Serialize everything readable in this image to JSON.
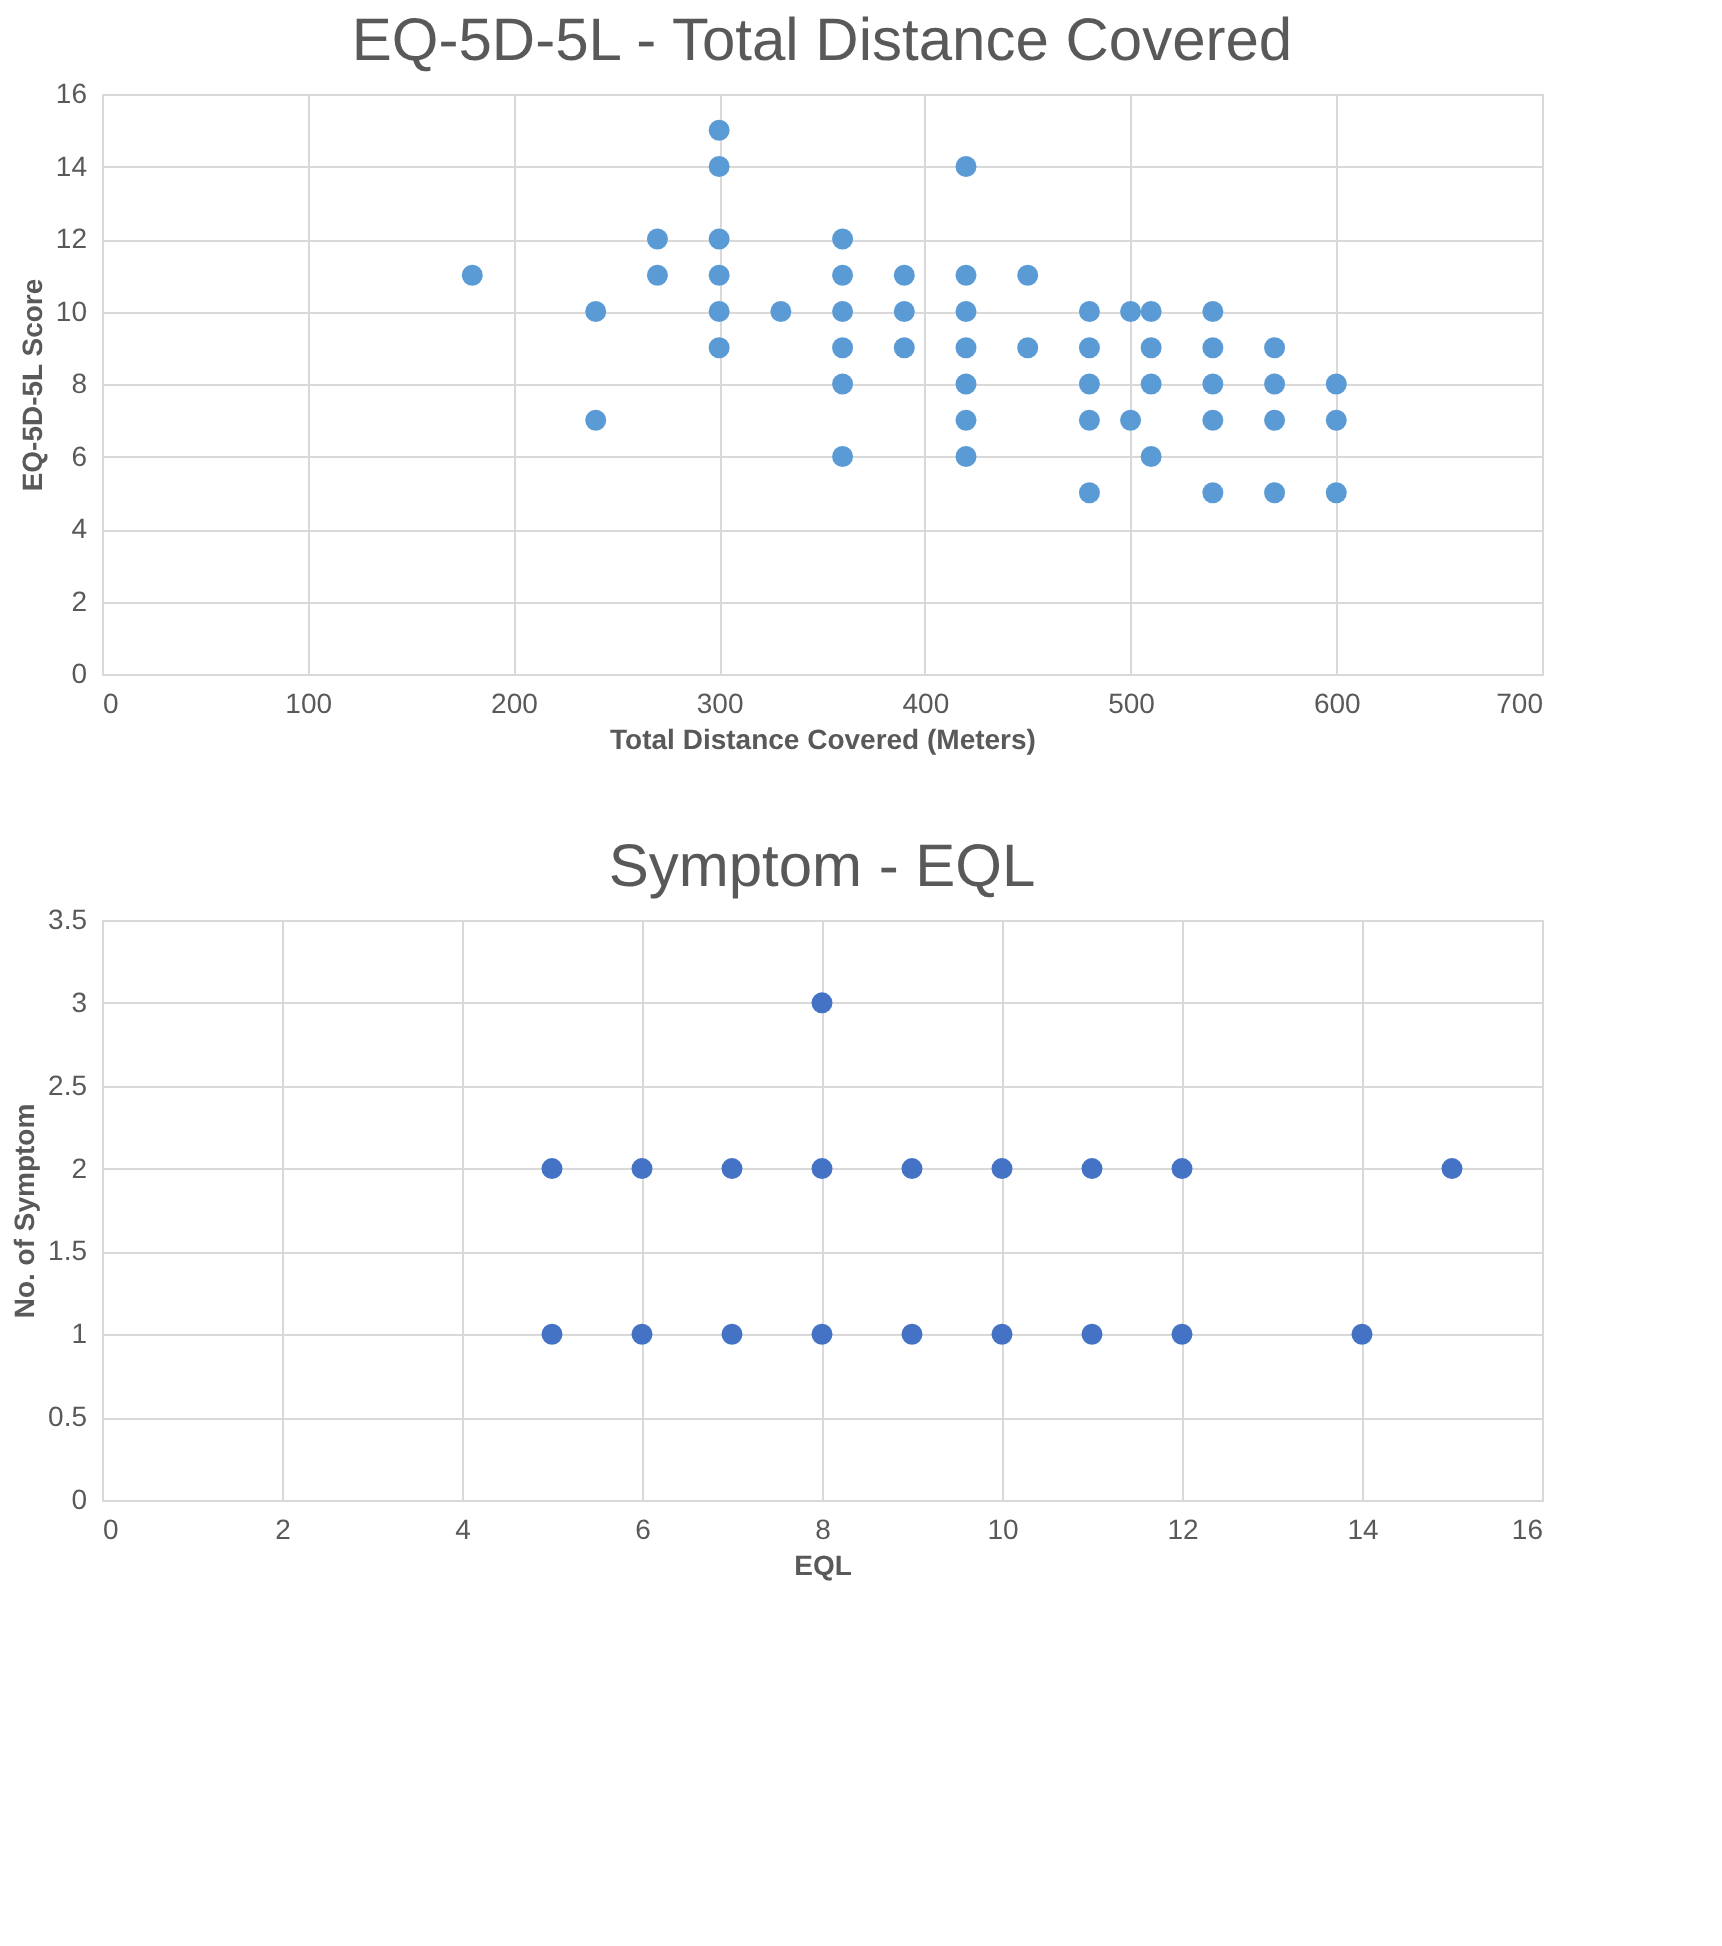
{
  "chart_data": [
    {
      "type": "scatter",
      "title": "EQ-5D-5L - Total Distance Covered",
      "xlabel": "Total Distance Covered (Meters)",
      "ylabel": "EQ-5D-5L Score",
      "series": [
        {
          "color": "#5b9bd5",
          "x": [
            180,
            240,
            240,
            270,
            270,
            300,
            300,
            300,
            300,
            300,
            300,
            330,
            360,
            360,
            360,
            360,
            360,
            360,
            390,
            390,
            390,
            420,
            420,
            420,
            420,
            420,
            420,
            420,
            450,
            450,
            480,
            480,
            480,
            480,
            480,
            500,
            500,
            510,
            510,
            510,
            510,
            540,
            540,
            540,
            540,
            540,
            570,
            570,
            570,
            570,
            600,
            600,
            600
          ],
          "values": [
            11,
            10,
            7,
            12,
            11,
            15,
            14,
            12,
            11,
            10,
            9,
            10,
            12,
            11,
            10,
            9,
            8,
            6,
            11,
            10,
            9,
            14,
            11,
            10,
            9,
            8,
            7,
            6,
            11,
            9,
            10,
            9,
            8,
            7,
            5,
            10,
            7,
            10,
            9,
            8,
            6,
            10,
            9,
            8,
            7,
            5,
            9,
            8,
            7,
            5,
            8,
            7,
            5
          ]
        }
      ],
      "xlim": [
        0,
        700
      ],
      "xticks": [
        0,
        100,
        200,
        300,
        400,
        500,
        600,
        700
      ],
      "ylim": [
        0,
        16
      ],
      "yticks": [
        0,
        2,
        4,
        6,
        8,
        10,
        12,
        14,
        16
      ],
      "grid": true,
      "marker": "circle"
    },
    {
      "type": "scatter",
      "title": "Symptom - EQL",
      "xlabel": "EQL",
      "ylabel": "No. of Symptom",
      "series": [
        {
          "color": "#4472c4",
          "x": [
            5,
            5,
            6,
            6,
            7,
            7,
            8,
            8,
            8,
            9,
            9,
            10,
            10,
            11,
            11,
            12,
            12,
            14,
            15
          ],
          "values": [
            2,
            1,
            2,
            1,
            2,
            1,
            3,
            2,
            1,
            2,
            1,
            2,
            1,
            2,
            1,
            2,
            1,
            1,
            2
          ]
        }
      ],
      "xlim": [
        0,
        16
      ],
      "xticks": [
        0,
        2,
        4,
        6,
        8,
        10,
        12,
        14,
        16
      ],
      "ylim": [
        0,
        3.5
      ],
      "yticks": [
        0,
        0.5,
        1,
        1.5,
        2,
        2.5,
        3,
        3.5
      ],
      "grid": true,
      "marker": "circle"
    }
  ]
}
